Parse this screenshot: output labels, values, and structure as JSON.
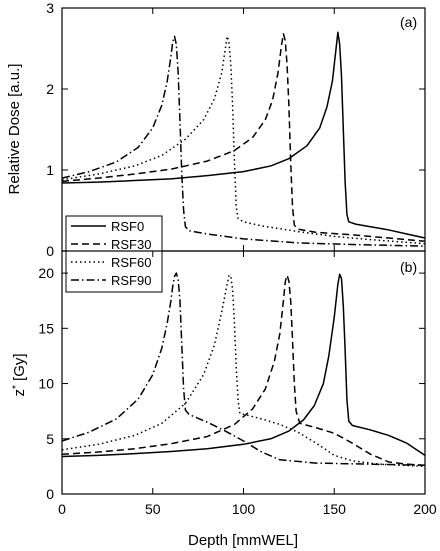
{
  "chart_data": [
    {
      "type": "line",
      "panel_label": "(a)",
      "ylabel": "Relative Dose [a.u.]",
      "xlabel": "",
      "xlim": [
        0,
        200
      ],
      "ylim": [
        0,
        3
      ],
      "xticks": [
        0,
        50,
        100,
        150,
        200
      ],
      "yticks": [
        0,
        1,
        2,
        3
      ],
      "grid": false,
      "legend": {
        "position": "bottom-left",
        "entries": [
          {
            "name": "RSF0",
            "dash": "solid"
          },
          {
            "name": "RSF30",
            "dash": "dashed"
          },
          {
            "name": "RSF60",
            "dash": "dotted"
          },
          {
            "name": "RSF90",
            "dash": "dashdot"
          }
        ]
      },
      "series": [
        {
          "name": "RSF0",
          "dash": "solid",
          "points": [
            [
              0,
              0.84
            ],
            [
              20,
              0.85
            ],
            [
              40,
              0.87
            ],
            [
              60,
              0.89
            ],
            [
              80,
              0.93
            ],
            [
              100,
              0.98
            ],
            [
              115,
              1.05
            ],
            [
              125,
              1.14
            ],
            [
              135,
              1.3
            ],
            [
              142,
              1.52
            ],
            [
              146,
              1.78
            ],
            [
              149,
              2.1
            ],
            [
              151,
              2.5
            ],
            [
              152,
              2.7
            ],
            [
              153,
              2.55
            ],
            [
              154,
              2.15
            ],
            [
              155,
              1.5
            ],
            [
              156,
              0.85
            ],
            [
              157,
              0.45
            ],
            [
              158,
              0.36
            ],
            [
              162,
              0.33
            ],
            [
              170,
              0.3
            ],
            [
              180,
              0.26
            ],
            [
              190,
              0.21
            ],
            [
              200,
              0.16
            ]
          ]
        },
        {
          "name": "RSF30",
          "dash": "dashed",
          "points": [
            [
              0,
              0.86
            ],
            [
              20,
              0.9
            ],
            [
              40,
              0.95
            ],
            [
              60,
              1.01
            ],
            [
              80,
              1.11
            ],
            [
              95,
              1.24
            ],
            [
              105,
              1.4
            ],
            [
              112,
              1.62
            ],
            [
              116,
              1.86
            ],
            [
              119,
              2.2
            ],
            [
              121,
              2.55
            ],
            [
              122,
              2.68
            ],
            [
              123,
              2.6
            ],
            [
              124,
              2.3
            ],
            [
              125,
              1.8
            ],
            [
              126,
              1.1
            ],
            [
              127,
              0.55
            ],
            [
              128,
              0.32
            ],
            [
              130,
              0.27
            ],
            [
              140,
              0.23
            ],
            [
              160,
              0.2
            ],
            [
              180,
              0.16
            ],
            [
              200,
              0.12
            ]
          ]
        },
        {
          "name": "RSF60",
          "dash": "dotted",
          "points": [
            [
              0,
              0.88
            ],
            [
              20,
              0.95
            ],
            [
              40,
              1.05
            ],
            [
              55,
              1.18
            ],
            [
              68,
              1.38
            ],
            [
              78,
              1.62
            ],
            [
              84,
              1.88
            ],
            [
              88,
              2.2
            ],
            [
              90,
              2.5
            ],
            [
              91,
              2.65
            ],
            [
              92,
              2.58
            ],
            [
              93,
              2.3
            ],
            [
              94,
              1.8
            ],
            [
              95,
              1.1
            ],
            [
              96,
              0.55
            ],
            [
              97,
              0.4
            ],
            [
              100,
              0.36
            ],
            [
              110,
              0.31
            ],
            [
              130,
              0.24
            ],
            [
              150,
              0.18
            ],
            [
              170,
              0.14
            ],
            [
              200,
              0.09
            ]
          ]
        },
        {
          "name": "RSF90",
          "dash": "dashdot",
          "points": [
            [
              0,
              0.9
            ],
            [
              15,
              0.98
            ],
            [
              30,
              1.1
            ],
            [
              42,
              1.28
            ],
            [
              50,
              1.52
            ],
            [
              55,
              1.8
            ],
            [
              58,
              2.1
            ],
            [
              60,
              2.4
            ],
            [
              61,
              2.58
            ],
            [
              62,
              2.65
            ],
            [
              63,
              2.55
            ],
            [
              64,
              2.2
            ],
            [
              65,
              1.6
            ],
            [
              66,
              0.95
            ],
            [
              67,
              0.5
            ],
            [
              68,
              0.3
            ],
            [
              70,
              0.25
            ],
            [
              80,
              0.21
            ],
            [
              100,
              0.15
            ],
            [
              130,
              0.1
            ],
            [
              160,
              0.08
            ],
            [
              200,
              0.06
            ]
          ]
        }
      ]
    },
    {
      "type": "line",
      "panel_label": "(b)",
      "ylabel": "z",
      "ylabel_sup": "*",
      "ylabel_unit": " [Gy]",
      "xlabel": "Depth [mmWEL]",
      "xlim": [
        0,
        200
      ],
      "ylim": [
        0,
        22
      ],
      "xticks": [
        0,
        50,
        100,
        150,
        200
      ],
      "yticks": [
        0,
        5,
        10,
        15,
        20
      ],
      "grid": false,
      "series": [
        {
          "name": "RSF0",
          "dash": "solid",
          "points": [
            [
              0,
              3.4
            ],
            [
              20,
              3.5
            ],
            [
              40,
              3.65
            ],
            [
              60,
              3.85
            ],
            [
              80,
              4.1
            ],
            [
              100,
              4.5
            ],
            [
              115,
              5.0
            ],
            [
              125,
              5.7
            ],
            [
              133,
              6.7
            ],
            [
              139,
              8.0
            ],
            [
              144,
              10.0
            ],
            [
              147,
              12.5
            ],
            [
              150,
              16.0
            ],
            [
              152,
              19.0
            ],
            [
              153,
              19.9
            ],
            [
              154,
              19.5
            ],
            [
              155,
              17.0
            ],
            [
              156,
              13.0
            ],
            [
              157,
              8.5
            ],
            [
              158,
              6.6
            ],
            [
              160,
              6.2
            ],
            [
              170,
              5.8
            ],
            [
              180,
              5.3
            ],
            [
              190,
              4.6
            ],
            [
              200,
              3.5
            ]
          ]
        },
        {
          "name": "RSF30",
          "dash": "dashed",
          "points": [
            [
              0,
              3.6
            ],
            [
              20,
              3.8
            ],
            [
              40,
              4.1
            ],
            [
              60,
              4.55
            ],
            [
              80,
              5.2
            ],
            [
              95,
              6.3
            ],
            [
              105,
              7.7
            ],
            [
              112,
              9.5
            ],
            [
              117,
              12.0
            ],
            [
              120,
              14.5
            ],
            [
              122,
              17.5
            ],
            [
              123,
              19.2
            ],
            [
              124,
              19.8
            ],
            [
              125,
              19.3
            ],
            [
              126,
              17.5
            ],
            [
              127,
              14.0
            ],
            [
              128,
              10.0
            ],
            [
              129,
              7.5
            ],
            [
              131,
              6.4
            ],
            [
              140,
              6.0
            ],
            [
              150,
              5.5
            ],
            [
              160,
              4.6
            ],
            [
              170,
              3.6
            ],
            [
              180,
              2.9
            ],
            [
              190,
              2.7
            ],
            [
              200,
              2.6
            ]
          ]
        },
        {
          "name": "RSF60",
          "dash": "dotted",
          "points": [
            [
              0,
              4.0
            ],
            [
              20,
              4.5
            ],
            [
              40,
              5.3
            ],
            [
              55,
              6.4
            ],
            [
              68,
              8.2
            ],
            [
              78,
              10.8
            ],
            [
              84,
              13.5
            ],
            [
              88,
              16.5
            ],
            [
              91,
              19.0
            ],
            [
              92,
              19.8
            ],
            [
              93,
              19.7
            ],
            [
              94,
              18.5
            ],
            [
              95,
              15.5
            ],
            [
              96,
              11.5
            ],
            [
              97,
              8.5
            ],
            [
              98,
              7.3
            ],
            [
              110,
              6.8
            ],
            [
              120,
              6.3
            ],
            [
              130,
              5.6
            ],
            [
              140,
              4.6
            ],
            [
              150,
              3.5
            ],
            [
              160,
              3.0
            ],
            [
              175,
              2.7
            ],
            [
              200,
              2.5
            ]
          ]
        },
        {
          "name": "RSF90",
          "dash": "dashdot",
          "points": [
            [
              0,
              4.8
            ],
            [
              15,
              5.6
            ],
            [
              30,
              6.8
            ],
            [
              42,
              8.6
            ],
            [
              50,
              10.8
            ],
            [
              55,
              13.2
            ],
            [
              58,
              15.5
            ],
            [
              60,
              17.5
            ],
            [
              61,
              18.8
            ],
            [
              62,
              19.7
            ],
            [
              63,
              20.0
            ],
            [
              64,
              19.4
            ],
            [
              65,
              17.5
            ],
            [
              66,
              13.5
            ],
            [
              67,
              9.5
            ],
            [
              68,
              7.6
            ],
            [
              70,
              7.2
            ],
            [
              80,
              6.5
            ],
            [
              90,
              5.7
            ],
            [
              100,
              4.8
            ],
            [
              110,
              3.8
            ],
            [
              120,
              3.1
            ],
            [
              140,
              2.8
            ],
            [
              170,
              2.7
            ],
            [
              200,
              2.6
            ]
          ]
        }
      ]
    }
  ]
}
